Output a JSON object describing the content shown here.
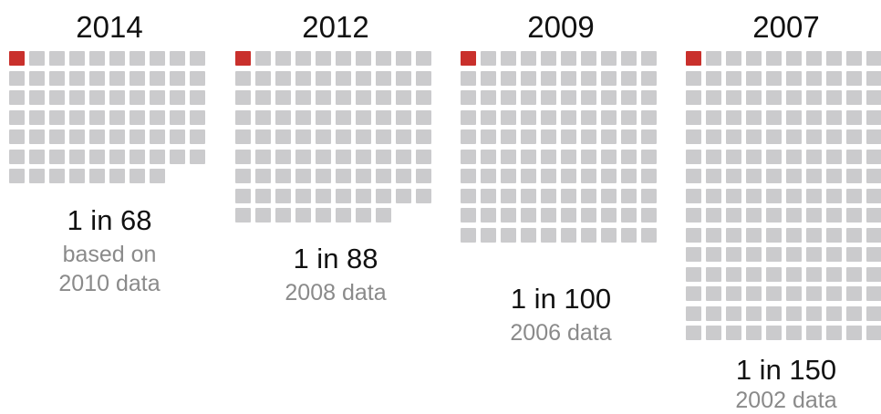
{
  "chart_data": {
    "type": "waffle",
    "colors": {
      "highlight": "#c9302c",
      "base": "#cbcbcd"
    },
    "panels": [
      {
        "year": "2014",
        "ratio": "1 in 68",
        "denominator": 68,
        "highlighted": 1,
        "note_lines": [
          "based on",
          "2010 data"
        ]
      },
      {
        "year": "2012",
        "ratio": "1 in 88",
        "denominator": 88,
        "highlighted": 1,
        "note_lines": [
          "2008 data"
        ]
      },
      {
        "year": "2009",
        "ratio": "1 in 100",
        "denominator": 100,
        "highlighted": 1,
        "note_lines": [
          "2006 data"
        ]
      },
      {
        "year": "2007",
        "ratio": "1 in 150",
        "denominator": 150,
        "highlighted": 1,
        "note_lines": [
          "2002 data"
        ]
      }
    ]
  }
}
